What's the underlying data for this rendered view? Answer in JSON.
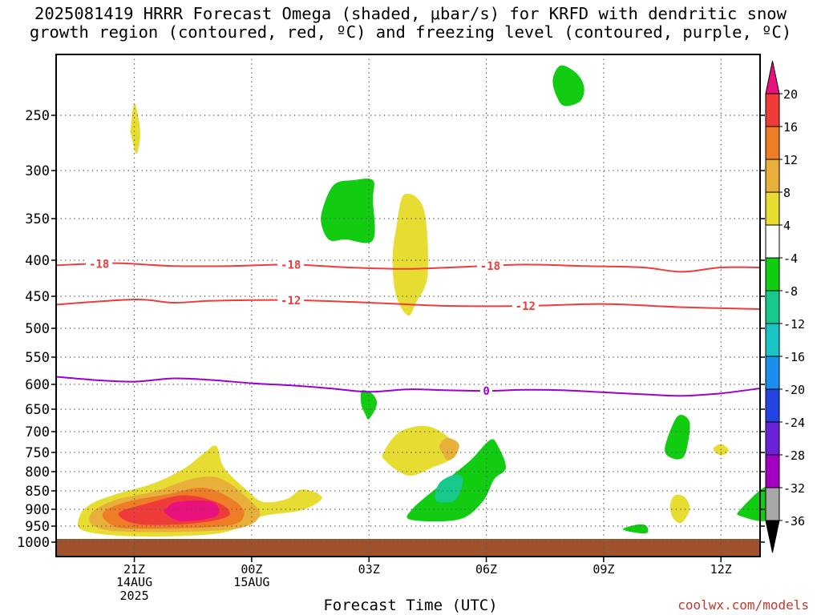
{
  "title_line1": "2025081419 HRRR Forecast Omega (shaded, μbar/s) for KRFD with dendritic snow",
  "title_line2": "growth region (contoured, red, ºC) and freezing level (contoured, purple, ºC)",
  "source": "coolwx.com/models",
  "colors": {
    "ground": "#a0522d",
    "grid": "#555555",
    "dgz_contour": "#ef3b3b",
    "freezing_contour": "#9b00d3"
  },
  "chart_data": {
    "type": "heatmap",
    "xlabel": "Forecast Time (UTC)",
    "ylabel": "",
    "x_hours_range": [
      19,
      37
    ],
    "y_range_mb": [
      200,
      1015
    ],
    "y_scale": "pressure",
    "grid": true,
    "x_ticks": [
      {
        "hour": 21,
        "label": "21Z",
        "date1": "14AUG",
        "date2": "2025"
      },
      {
        "hour": 24,
        "label": "00Z",
        "date1": "15AUG",
        "date2": ""
      },
      {
        "hour": 27,
        "label": "03Z",
        "date1": "",
        "date2": ""
      },
      {
        "hour": 30,
        "label": "06Z",
        "date1": "",
        "date2": ""
      },
      {
        "hour": 33,
        "label": "09Z",
        "date1": "",
        "date2": ""
      },
      {
        "hour": 36,
        "label": "12Z",
        "date1": "",
        "date2": ""
      }
    ],
    "y_ticks": [
      250,
      300,
      350,
      400,
      450,
      500,
      550,
      600,
      650,
      700,
      750,
      800,
      850,
      900,
      950,
      1000
    ],
    "colorbar": {
      "labels": [
        "20",
        "16",
        "12",
        "8",
        "4",
        "-4",
        "-8",
        "-12",
        "-16",
        "-20",
        "-24",
        "-28",
        "-32",
        "-36"
      ],
      "colors": [
        "#e8117e",
        "#f03b3b",
        "#ed7d26",
        "#e8b03a",
        "#e6dc32",
        "#ffffff",
        "#11cc11",
        "#16c98a",
        "#19c4c4",
        "#1a8fef",
        "#2344e0",
        "#6a22d6",
        "#a300c2",
        "#a7a7a7"
      ]
    },
    "contours": [
      {
        "value": "-18",
        "color": "#ef3b3b",
        "points": [
          [
            19,
            407
          ],
          [
            20.5,
            404
          ],
          [
            22,
            408
          ],
          [
            23.5,
            408
          ],
          [
            25,
            406
          ],
          [
            26.5,
            410
          ],
          [
            28,
            412
          ],
          [
            29.5,
            409
          ],
          [
            31,
            406
          ],
          [
            32.5,
            408
          ],
          [
            34,
            410
          ],
          [
            35,
            416
          ],
          [
            36,
            410
          ],
          [
            37,
            410
          ]
        ],
        "label_hours": [
          20.1,
          25.0,
          30.1
        ]
      },
      {
        "value": "-12",
        "color": "#ef3b3b",
        "points": [
          [
            19,
            463
          ],
          [
            21,
            455
          ],
          [
            22,
            460
          ],
          [
            23,
            457
          ],
          [
            25,
            456
          ],
          [
            27,
            460
          ],
          [
            29,
            465
          ],
          [
            31,
            465
          ],
          [
            33,
            462
          ],
          [
            35,
            467
          ],
          [
            37,
            470
          ]
        ],
        "label_hours": [
          25.0,
          31.0
        ]
      },
      {
        "value": "0",
        "color": "#9b00d3",
        "points": [
          [
            19,
            586
          ],
          [
            20,
            592
          ],
          [
            21,
            595
          ],
          [
            22,
            589
          ],
          [
            23,
            592
          ],
          [
            24,
            598
          ],
          [
            25,
            602
          ],
          [
            26,
            608
          ],
          [
            27,
            615
          ],
          [
            28,
            610
          ],
          [
            29,
            612
          ],
          [
            30,
            613
          ],
          [
            31,
            611
          ],
          [
            32,
            612
          ],
          [
            33,
            616
          ],
          [
            34,
            620
          ],
          [
            35,
            623
          ],
          [
            36,
            618
          ],
          [
            37,
            608
          ]
        ],
        "label_hours": [
          30.0
        ]
      }
    ],
    "omega_blobs": [
      {
        "value": 4,
        "points": [
          [
            19.6,
            920
          ],
          [
            19.9,
            885
          ],
          [
            20.5,
            860
          ],
          [
            21.5,
            830
          ],
          [
            22.3,
            790
          ],
          [
            22.8,
            750
          ],
          [
            23.1,
            735
          ],
          [
            23.3,
            790
          ],
          [
            23.9,
            850
          ],
          [
            24.3,
            880
          ],
          [
            24.9,
            872
          ],
          [
            25.3,
            846
          ],
          [
            25.8,
            868
          ],
          [
            25.3,
            902
          ],
          [
            24.3,
            920
          ],
          [
            23.8,
            948
          ],
          [
            23,
            975
          ],
          [
            21,
            982
          ],
          [
            19.7,
            964
          ]
        ]
      },
      {
        "value": 8,
        "points": [
          [
            19.9,
            912
          ],
          [
            20.5,
            875
          ],
          [
            21.5,
            852
          ],
          [
            22.5,
            818
          ],
          [
            23.2,
            818
          ],
          [
            23.9,
            870
          ],
          [
            24.2,
            920
          ],
          [
            23.5,
            960
          ],
          [
            21,
            968
          ],
          [
            20,
            952
          ]
        ]
      },
      {
        "value": 12,
        "points": [
          [
            20.2,
            910
          ],
          [
            20.8,
            880
          ],
          [
            21.8,
            860
          ],
          [
            22.8,
            842
          ],
          [
            23.6,
            880
          ],
          [
            23.8,
            920
          ],
          [
            23.3,
            950
          ],
          [
            21,
            958
          ],
          [
            20.4,
            945
          ]
        ]
      },
      {
        "value": 16,
        "points": [
          [
            20.6,
            912
          ],
          [
            21.3,
            885
          ],
          [
            22.3,
            862
          ],
          [
            23.2,
            885
          ],
          [
            23.4,
            920
          ],
          [
            22.5,
            942
          ],
          [
            21.1,
            944
          ]
        ]
      },
      {
        "value": 20,
        "points": [
          [
            21.8,
            900
          ],
          [
            22.1,
            880
          ],
          [
            23,
            880
          ],
          [
            23.1,
            920
          ],
          [
            22.2,
            935
          ],
          [
            21.8,
            912
          ]
        ]
      },
      {
        "value": 4,
        "points": [
          [
            20.9,
            265
          ],
          [
            21,
            237
          ],
          [
            21.15,
            265
          ],
          [
            21.05,
            285
          ],
          [
            20.9,
            265
          ]
        ]
      },
      {
        "value": 4,
        "points": [
          [
            27.7,
            360
          ],
          [
            27.9,
            325
          ],
          [
            28.4,
            340
          ],
          [
            28.5,
            420
          ],
          [
            28.2,
            460
          ],
          [
            28,
            480
          ],
          [
            27.7,
            450
          ],
          [
            27.6,
            400
          ]
        ]
      },
      {
        "value": 4,
        "points": [
          [
            27.4,
            745
          ],
          [
            27.8,
            700
          ],
          [
            28.5,
            688
          ],
          [
            29.1,
            720
          ],
          [
            29.2,
            760
          ],
          [
            28.6,
            790
          ],
          [
            28,
            810
          ],
          [
            27.4,
            770
          ]
        ]
      },
      {
        "value": 8,
        "points": [
          [
            28.8,
            735
          ],
          [
            29.0,
            715
          ],
          [
            29.3,
            730
          ],
          [
            29.2,
            760
          ],
          [
            29.0,
            770
          ],
          [
            28.9,
            755
          ]
        ]
      },
      {
        "value": 4,
        "points": [
          [
            35.8,
            742
          ],
          [
            36.0,
            730
          ],
          [
            36.2,
            745
          ],
          [
            36.0,
            758
          ]
        ]
      },
      {
        "value": 4,
        "points": [
          [
            34.75,
            870
          ],
          [
            34.9,
            860
          ],
          [
            35.1,
            870
          ],
          [
            35.2,
            900
          ],
          [
            35.0,
            940
          ],
          [
            34.8,
            930
          ],
          [
            34.7,
            900
          ]
        ]
      },
      {
        "value": -4,
        "points": [
          [
            25.8,
            342
          ],
          [
            26.1,
            315
          ],
          [
            26.6,
            310
          ],
          [
            27.1,
            310
          ],
          [
            27.1,
            330
          ],
          [
            27.1,
            376
          ],
          [
            26.4,
            375
          ],
          [
            26,
            376
          ],
          [
            25.8,
            360
          ]
        ]
      },
      {
        "value": -4,
        "points": [
          [
            31.7,
            212
          ],
          [
            31.9,
            197
          ],
          [
            32.3,
            205
          ],
          [
            32.5,
            220
          ],
          [
            32.4,
            235
          ],
          [
            32.0,
            240
          ],
          [
            31.8,
            230
          ]
        ]
      },
      {
        "value": -4,
        "points": [
          [
            26.8,
            615
          ],
          [
            26.9,
            612
          ],
          [
            27.1,
            620
          ],
          [
            27.2,
            640
          ],
          [
            27.0,
            672
          ],
          [
            26.9,
            660
          ],
          [
            26.8,
            640
          ]
        ]
      },
      {
        "value": -4,
        "points": [
          [
            28.1,
            900
          ],
          [
            29,
            820
          ],
          [
            29.6,
            770
          ],
          [
            30.1,
            720
          ],
          [
            30.3,
            735
          ],
          [
            30.5,
            790
          ],
          [
            30.2,
            820
          ],
          [
            29.9,
            880
          ],
          [
            29.3,
            930
          ],
          [
            28.1,
            932
          ]
        ]
      },
      {
        "value": -8,
        "points": [
          [
            28.7,
            875
          ],
          [
            28.8,
            830
          ],
          [
            29.2,
            808
          ],
          [
            29.4,
            820
          ],
          [
            29.3,
            860
          ],
          [
            29.1,
            880
          ]
        ]
      },
      {
        "value": -4,
        "points": [
          [
            34.6,
            725
          ],
          [
            34.9,
            665
          ],
          [
            35.2,
            680
          ],
          [
            35.1,
            750
          ],
          [
            34.9,
            768
          ],
          [
            34.6,
            755
          ]
        ]
      },
      {
        "value": -4,
        "points": [
          [
            33.5,
            958
          ],
          [
            33.9,
            945
          ],
          [
            34.1,
            950
          ],
          [
            34.1,
            972
          ],
          [
            33.7,
            968
          ]
        ]
      },
      {
        "value": -4,
        "points": [
          [
            36.5,
            900
          ],
          [
            37.2,
            838
          ],
          [
            37.2,
            930
          ],
          [
            36.5,
            920
          ]
        ]
      }
    ]
  }
}
